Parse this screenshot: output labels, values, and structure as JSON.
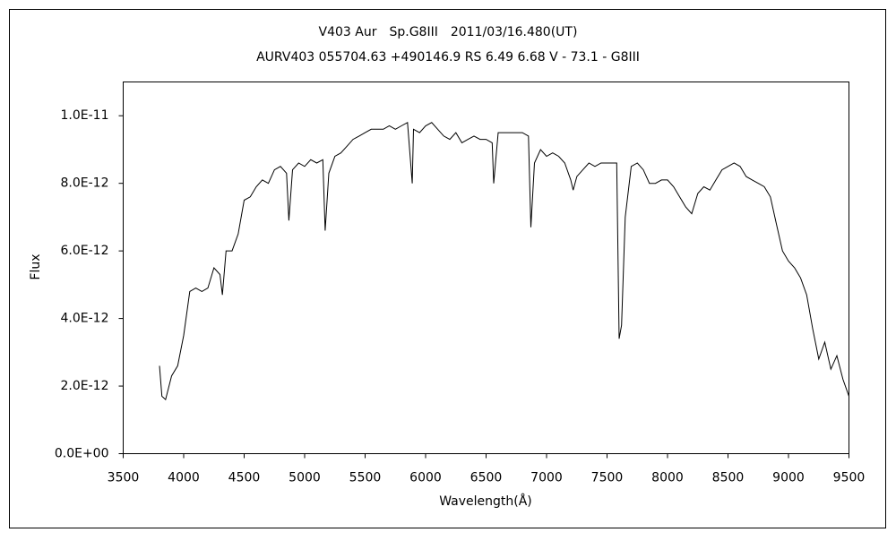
{
  "chart_data": {
    "type": "line",
    "title": "V403 Aur　Sp.G8III　2011/03/16.480(UT)",
    "subtitle": "AURV403 055704.63 +490146.9 RS 6.49 6.68 V - 73.1 - G8III",
    "x_label": "Wavelength(Å)",
    "y_label": "Flux",
    "xlim": [
      3500,
      9500
    ],
    "xticks": [
      3500,
      4000,
      4500,
      5000,
      5500,
      6000,
      6500,
      7000,
      7500,
      8000,
      8500,
      9000,
      9500
    ],
    "ylim": [
      0,
      1.1e-11
    ],
    "yticks": [
      {
        "value": 0,
        "label": "0.0E+00"
      },
      {
        "value": 2e-12,
        "label": "2.0E-12"
      },
      {
        "value": 4e-12,
        "label": "4.0E-12"
      },
      {
        "value": 6e-12,
        "label": "6.0E-12"
      },
      {
        "value": 8e-12,
        "label": "8.0E-12"
      },
      {
        "value": 1e-11,
        "label": "1.0E-11"
      }
    ],
    "grid": false,
    "series": [
      {
        "color": "#000000",
        "x": [
          3800,
          3820,
          3850,
          3900,
          3950,
          4000,
          4050,
          4100,
          4150,
          4200,
          4250,
          4300,
          4320,
          4350,
          4400,
          4450,
          4500,
          4550,
          4600,
          4650,
          4700,
          4750,
          4800,
          4850,
          4870,
          4900,
          4950,
          5000,
          5050,
          5100,
          5150,
          5170,
          5200,
          5250,
          5300,
          5350,
          5400,
          5450,
          5500,
          5550,
          5600,
          5650,
          5700,
          5750,
          5800,
          5850,
          5890,
          5900,
          5950,
          6000,
          6050,
          6100,
          6150,
          6200,
          6250,
          6300,
          6350,
          6400,
          6450,
          6500,
          6550,
          6563,
          6600,
          6650,
          6700,
          6750,
          6800,
          6850,
          6870,
          6900,
          6950,
          7000,
          7050,
          7100,
          7150,
          7200,
          7220,
          7250,
          7300,
          7350,
          7400,
          7450,
          7500,
          7550,
          7580,
          7600,
          7620,
          7650,
          7700,
          7750,
          7800,
          7850,
          7900,
          7950,
          8000,
          8050,
          8100,
          8150,
          8200,
          8250,
          8300,
          8350,
          8400,
          8450,
          8500,
          8550,
          8600,
          8650,
          8700,
          8750,
          8800,
          8850,
          8900,
          8950,
          9000,
          9050,
          9100,
          9150,
          9200,
          9250,
          9300,
          9350,
          9400,
          9450,
          9500
        ],
        "values": [
          2.6e-12,
          1.7e-12,
          1.6e-12,
          2.3e-12,
          2.6e-12,
          3.5e-12,
          4.8e-12,
          4.9e-12,
          4.8e-12,
          4.9e-12,
          5.5e-12,
          5.3e-12,
          4.7e-12,
          6e-12,
          6e-12,
          6.5e-12,
          7.5e-12,
          7.6e-12,
          7.9e-12,
          8.1e-12,
          8e-12,
          8.4e-12,
          8.5e-12,
          8.3e-12,
          6.9e-12,
          8.4e-12,
          8.6e-12,
          8.5e-12,
          8.7e-12,
          8.6e-12,
          8.7e-12,
          6.6e-12,
          8.3e-12,
          8.8e-12,
          8.9e-12,
          9.1e-12,
          9.3e-12,
          9.4e-12,
          9.5e-12,
          9.6e-12,
          9.6e-12,
          9.6e-12,
          9.7e-12,
          9.6e-12,
          9.7e-12,
          9.8e-12,
          8e-12,
          9.6e-12,
          9.5e-12,
          9.7e-12,
          9.8e-12,
          9.6e-12,
          9.4e-12,
          9.3e-12,
          9.5e-12,
          9.2e-12,
          9.3e-12,
          9.4e-12,
          9.3e-12,
          9.3e-12,
          9.2e-12,
          8e-12,
          9.5e-12,
          9.5e-12,
          9.5e-12,
          9.5e-12,
          9.5e-12,
          9.4e-12,
          6.7e-12,
          8.6e-12,
          9e-12,
          8.8e-12,
          8.9e-12,
          8.8e-12,
          8.6e-12,
          8.1e-12,
          7.8e-12,
          8.2e-12,
          8.4e-12,
          8.6e-12,
          8.5e-12,
          8.6e-12,
          8.6e-12,
          8.6e-12,
          8.6e-12,
          3.4e-12,
          3.8e-12,
          7e-12,
          8.5e-12,
          8.6e-12,
          8.4e-12,
          8e-12,
          8e-12,
          8.1e-12,
          8.1e-12,
          7.9e-12,
          7.6e-12,
          7.3e-12,
          7.1e-12,
          7.7e-12,
          7.9e-12,
          7.8e-12,
          8.1e-12,
          8.4e-12,
          8.5e-12,
          8.6e-12,
          8.5e-12,
          8.2e-12,
          8.1e-12,
          8e-12,
          7.9e-12,
          7.6e-12,
          6.8e-12,
          6e-12,
          5.7e-12,
          5.5e-12,
          5.2e-12,
          4.7e-12,
          3.7e-12,
          2.8e-12,
          3.3e-12,
          2.5e-12,
          2.9e-12,
          2.2e-12,
          1.7e-12
        ]
      }
    ]
  }
}
